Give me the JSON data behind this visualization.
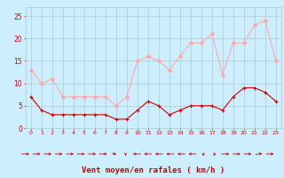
{
  "x": [
    0,
    1,
    2,
    3,
    4,
    5,
    6,
    7,
    8,
    9,
    10,
    11,
    12,
    13,
    14,
    15,
    16,
    17,
    18,
    19,
    20,
    21,
    22,
    23
  ],
  "avg_wind": [
    7,
    4,
    3,
    3,
    3,
    3,
    3,
    3,
    2,
    2,
    4,
    6,
    5,
    3,
    4,
    5,
    5,
    5,
    4,
    7,
    9,
    9,
    8,
    6
  ],
  "gust_wind": [
    13,
    10,
    11,
    7,
    7,
    7,
    7,
    7,
    5,
    7,
    15,
    16,
    15,
    13,
    16,
    19,
    19,
    21,
    12,
    19,
    19,
    23,
    24,
    15
  ],
  "avg_color": "#cc0000",
  "gust_color": "#ffaaaa",
  "bg_color": "#cceeff",
  "grid_color": "#aacccc",
  "xlabel": "Vent moyen/en rafales ( km/h )",
  "xlabel_color": "#cc0000",
  "tick_color": "#cc0000",
  "ylim": [
    0,
    27
  ],
  "yticks": [
    0,
    5,
    10,
    15,
    20,
    25
  ],
  "arrow_row_color": "#cc0000"
}
